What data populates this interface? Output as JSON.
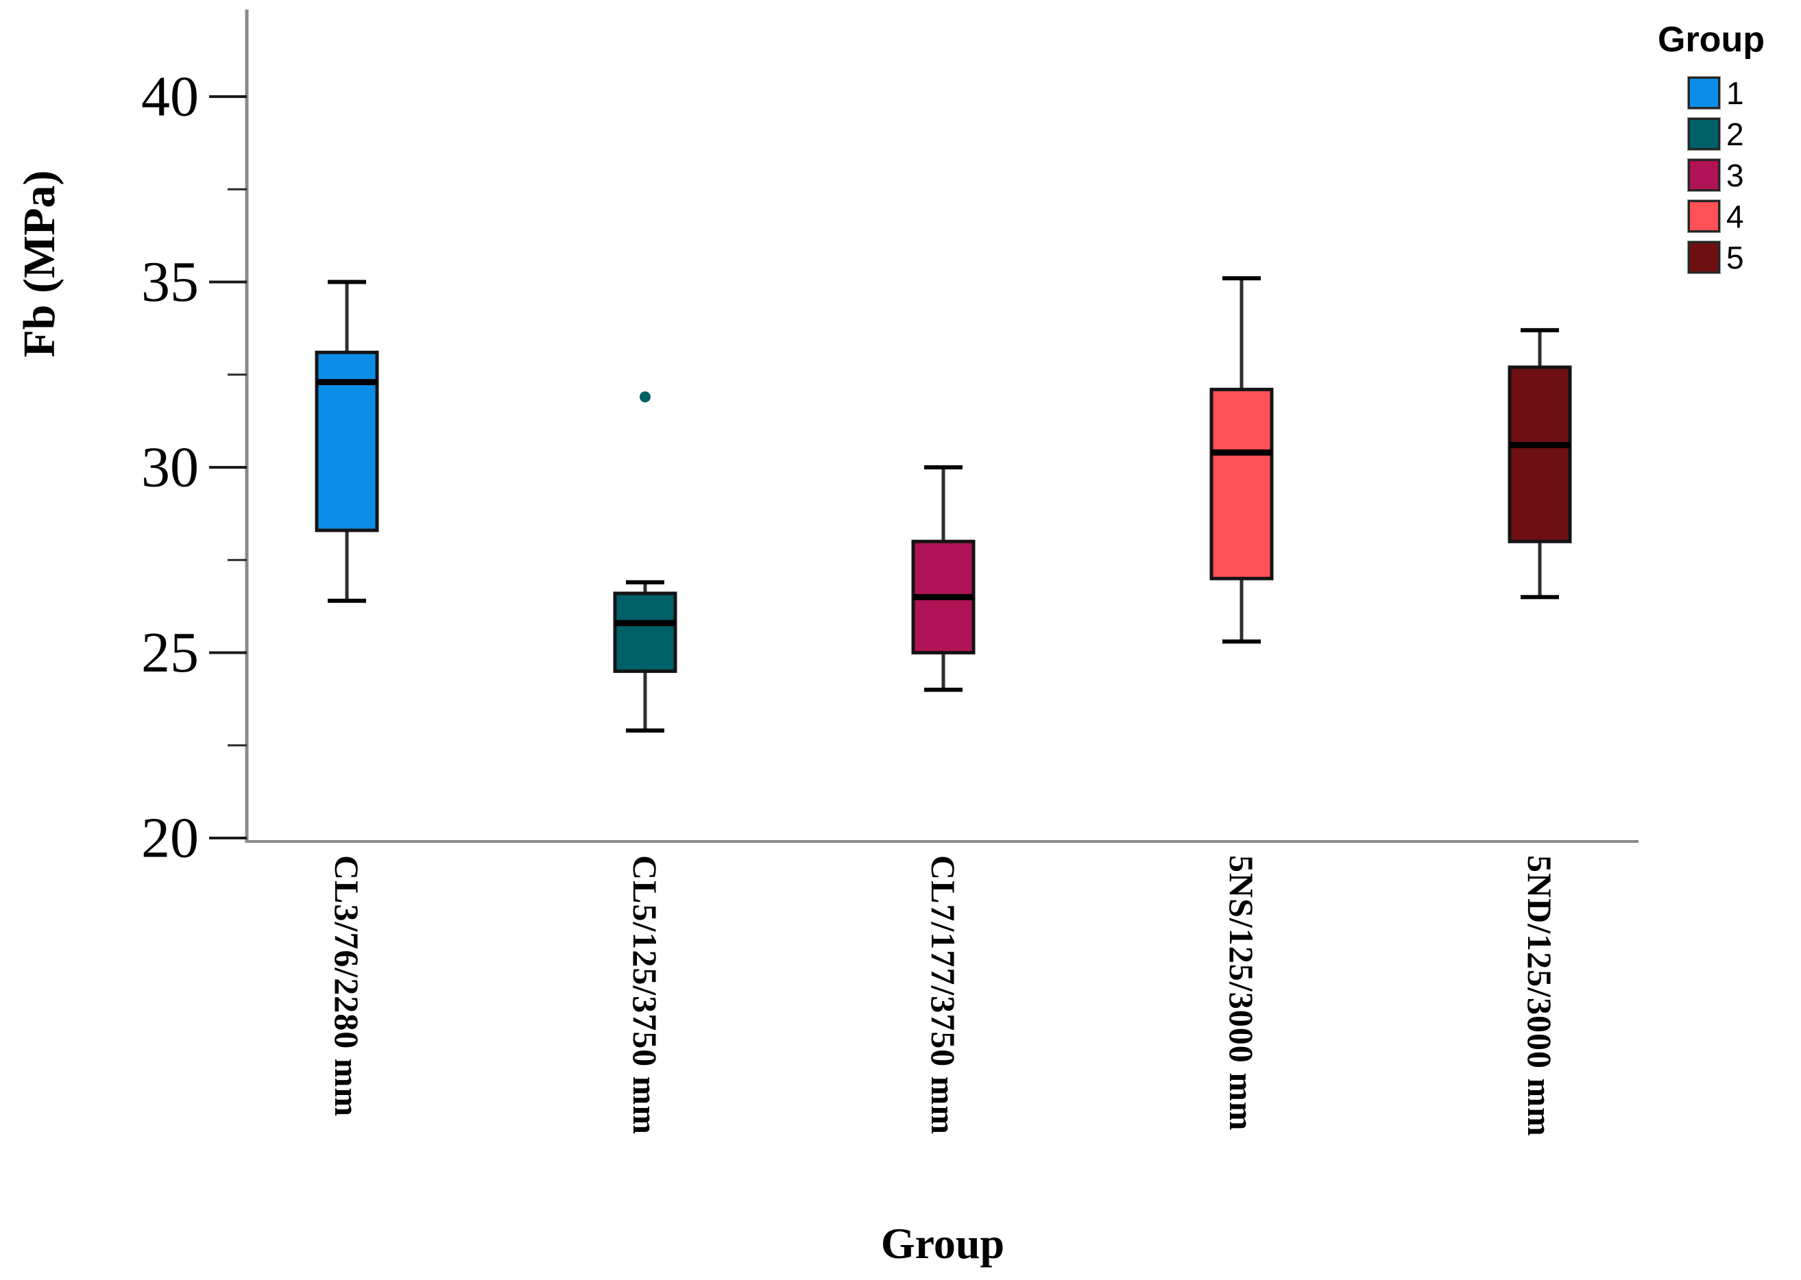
{
  "chart_data": {
    "type": "boxplot",
    "title": "",
    "xlabel": "Group",
    "ylabel": "Fb (MPa)",
    "ylim": [
      20,
      42
    ],
    "yticks_major": [
      40,
      35,
      30,
      25,
      20
    ],
    "yticks_minor": [
      37.5,
      32.5,
      27.5,
      22.5
    ],
    "grid": false,
    "legend_position": "top-right",
    "categories": [
      "CL3/76/2280 mm",
      "CL5/125/3750 mm",
      "CL7/177/3750 mm",
      "5NS/125/3000 mm",
      "5ND/125/3000 mm"
    ],
    "groups": [
      {
        "group": "1",
        "label": "CL3/76/2280 mm",
        "color": "#0C8EE8",
        "whisker_low": 26.4,
        "q1": 28.3,
        "median": 32.3,
        "q3": 33.1,
        "whisker_high": 35.0,
        "outliers": []
      },
      {
        "group": "2",
        "label": "CL5/125/3750 mm",
        "color": "#006067",
        "whisker_low": 22.9,
        "q1": 24.5,
        "median": 25.8,
        "q3": 26.6,
        "whisker_high": 26.9,
        "outliers": [
          31.9
        ]
      },
      {
        "group": "3",
        "label": "CL7/177/3750 mm",
        "color": "#B01356",
        "whisker_low": 24.0,
        "q1": 25.0,
        "median": 26.5,
        "q3": 28.0,
        "whisker_high": 30.0,
        "outliers": []
      },
      {
        "group": "4",
        "label": "5NS/125/3000 mm",
        "color": "#FC5156",
        "whisker_low": 25.3,
        "q1": 27.0,
        "median": 30.4,
        "q3": 32.1,
        "whisker_high": 35.1,
        "outliers": []
      },
      {
        "group": "5",
        "label": "5ND/125/3000 mm",
        "color": "#6E1013",
        "whisker_low": 26.5,
        "q1": 28.0,
        "median": 30.6,
        "q3": 32.7,
        "whisker_high": 33.7,
        "outliers": []
      }
    ],
    "legend": {
      "title": "Group",
      "entries": [
        {
          "label": "1",
          "color": "#0C8EE8"
        },
        {
          "label": "2",
          "color": "#006067"
        },
        {
          "label": "3",
          "color": "#B01356"
        },
        {
          "label": "4",
          "color": "#FC5156"
        },
        {
          "label": "5",
          "color": "#6E1013"
        }
      ]
    }
  }
}
